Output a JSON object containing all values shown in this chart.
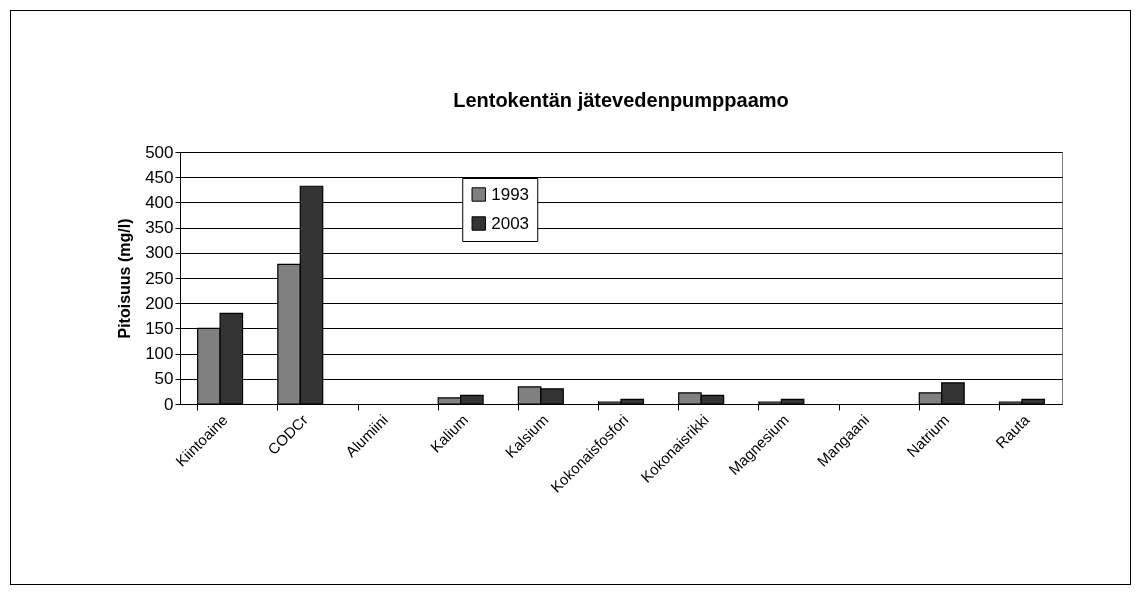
{
  "chart_data": {
    "type": "bar",
    "title": "Lentokentän jätevedenpumppaamo",
    "ylabel": "Pitoisuus (mg/l)",
    "categories": [
      "Kiintoaine",
      "CODCr",
      "Alumiini",
      "Kalium",
      "Kalsium",
      "Kokonaisfosfori",
      "Kokonaisrikki",
      "Magnesium",
      "Mangaani",
      "Natrium",
      "Rauta"
    ],
    "series": [
      {
        "name": "1993",
        "color": "#808080",
        "values": [
          150,
          277,
          null,
          12,
          34,
          4,
          22,
          4,
          null,
          22,
          4
        ]
      },
      {
        "name": "2003",
        "color": "#333333",
        "values": [
          180,
          432,
          null,
          17,
          30,
          9,
          17,
          9,
          null,
          42,
          9
        ]
      }
    ],
    "ylim": [
      0,
      500
    ],
    "yticks": [
      0,
      50,
      100,
      150,
      200,
      250,
      300,
      350,
      400,
      450,
      500
    ],
    "grid": "y",
    "legend": "top left"
  }
}
